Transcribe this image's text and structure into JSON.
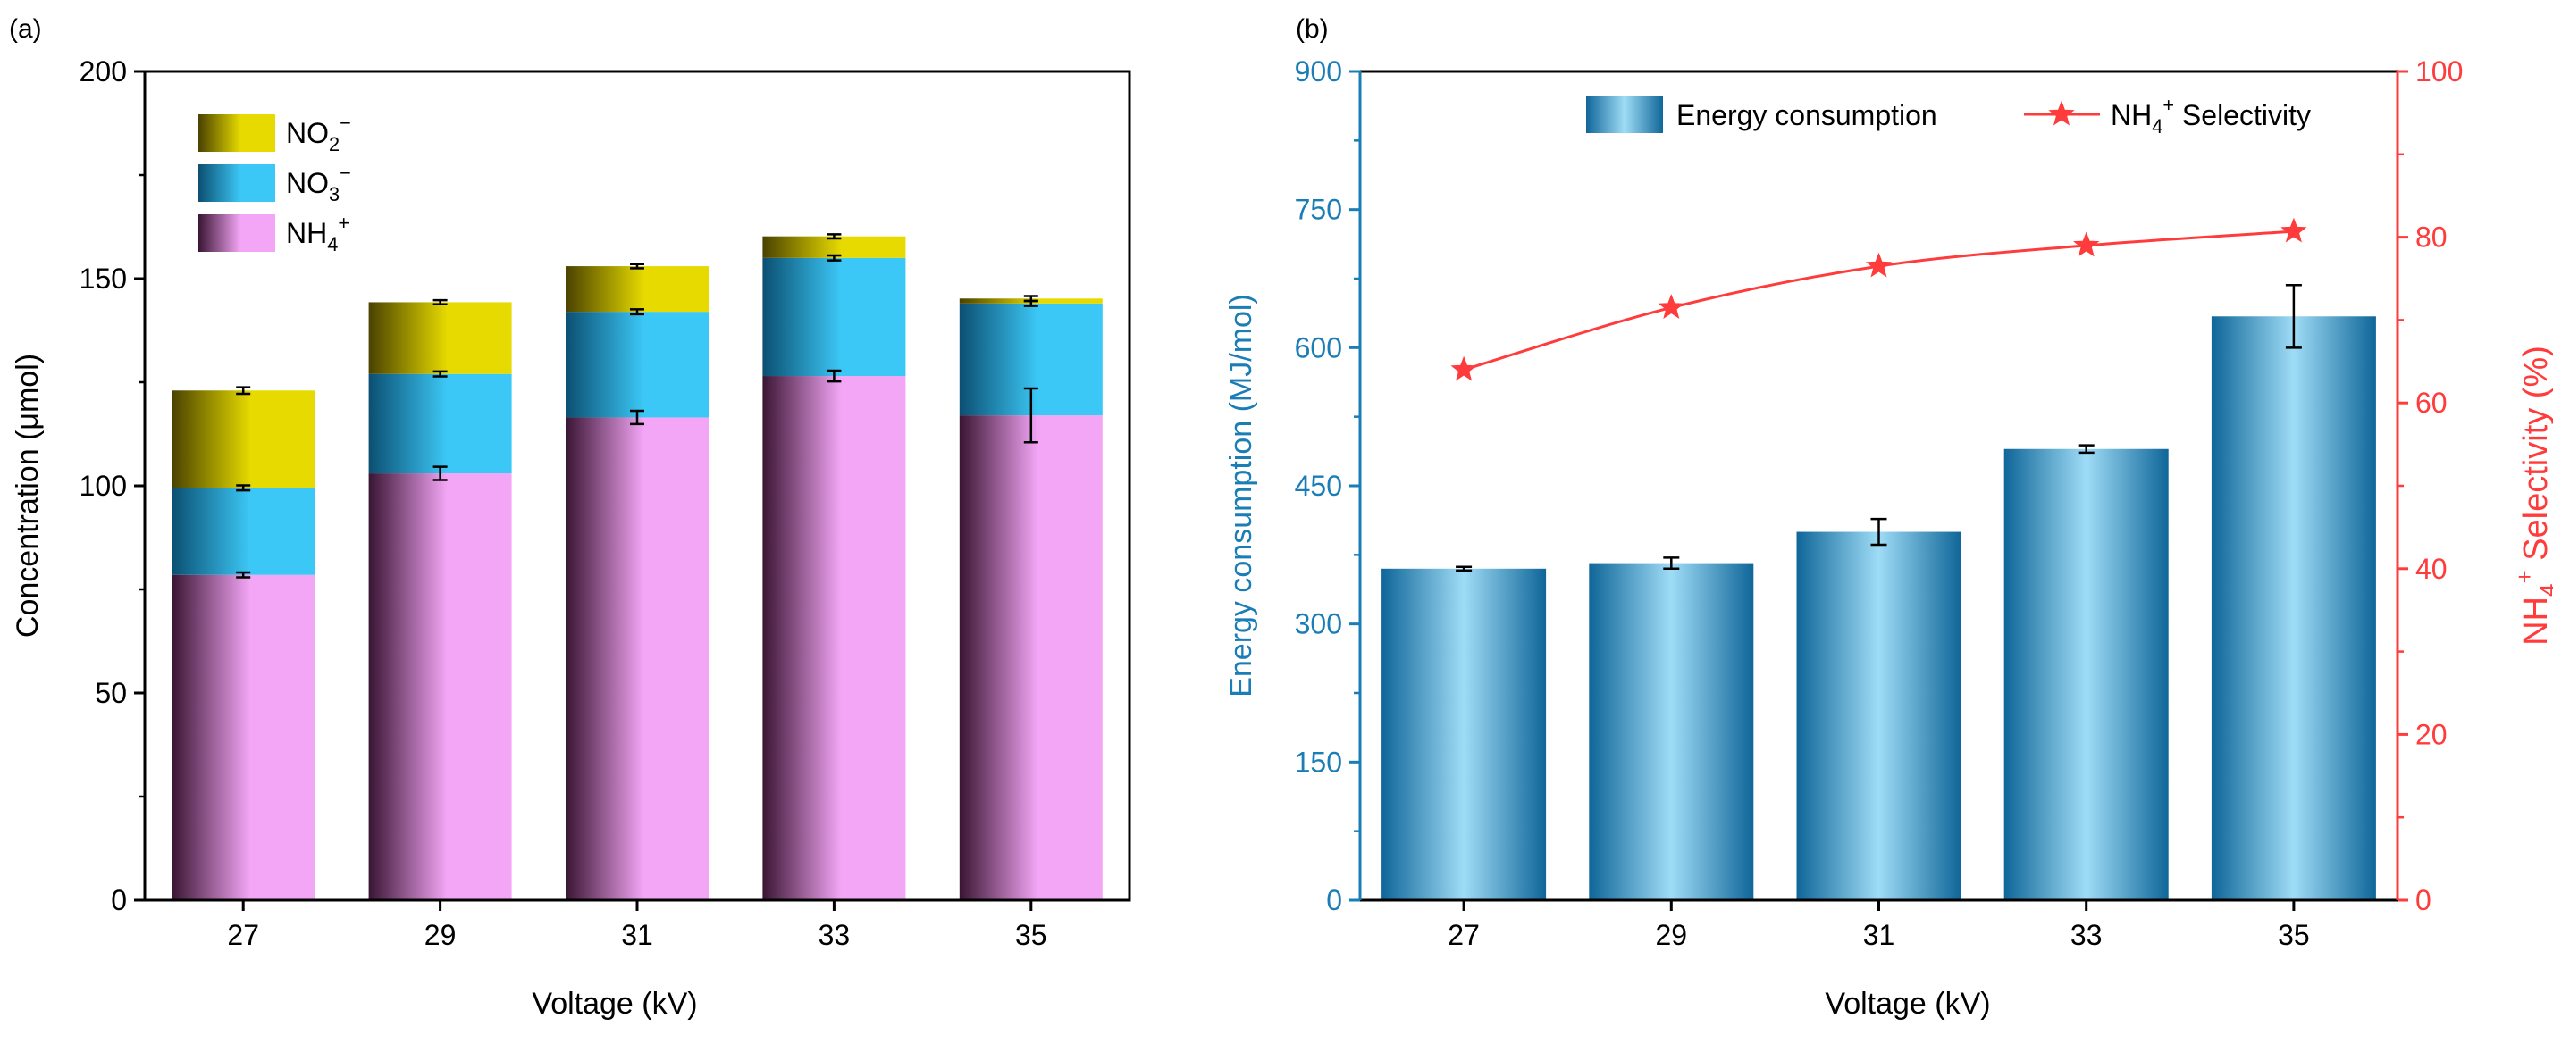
{
  "chart_data": [
    {
      "type": "bar",
      "panel_label": "(a)",
      "stacked": true,
      "categories": [
        "27",
        "29",
        "31",
        "33",
        "35"
      ],
      "xlabel": "Voltage (kV)",
      "ylabel": "Concentration (μmol)",
      "ylim": [
        0,
        200
      ],
      "yticks": [
        0,
        50,
        100,
        150,
        200
      ],
      "legend_position": "top-left",
      "series": [
        {
          "name": "NH4+",
          "label_base": "NH",
          "label_sub": "4",
          "label_sup": "+",
          "color": "#f4a6f6",
          "values": [
            78.5,
            103,
            116.5,
            126.5,
            117
          ],
          "errors": [
            0.6,
            1.6,
            1.6,
            1.3,
            6.5
          ]
        },
        {
          "name": "NO3−",
          "label_base": "NO",
          "label_sub": "3",
          "label_sup": "−",
          "color": "#3cc8f6",
          "values": [
            21,
            24,
            25.5,
            28.5,
            27
          ],
          "errors": [
            0.6,
            0.6,
            0.6,
            0.6,
            0.6
          ]
        },
        {
          "name": "NO2−",
          "label_base": "NO",
          "label_sub": "2",
          "label_sup": "−",
          "color": "#e6da00",
          "values": [
            23.5,
            17.3,
            11,
            5.2,
            1.2
          ],
          "errors": [
            0.8,
            0.5,
            0.5,
            0.5,
            0.6
          ]
        }
      ]
    },
    {
      "type": "bar",
      "panel_label": "(b)",
      "categories": [
        "27",
        "29",
        "31",
        "33",
        "35"
      ],
      "xlabel": "Voltage (kV)",
      "ylabel": "Energy consumption (MJ/mol)",
      "ylim": [
        0,
        900
      ],
      "yticks": [
        0,
        150,
        300,
        450,
        600,
        750,
        900
      ],
      "y2label_base": "NH",
      "y2label_sub": "4",
      "y2label_sup": "+",
      "y2label_rest": " Selectivity (%)",
      "y2lim": [
        0,
        100
      ],
      "y2ticks": [
        0,
        20,
        40,
        60,
        80,
        100
      ],
      "legend_position": "top-right",
      "series": [
        {
          "name": "Energy consumption",
          "type": "bar",
          "axis": "left",
          "color": "#1a7db5",
          "values": [
            360,
            366,
            400,
            490,
            634
          ],
          "errors": [
            2,
            6,
            14,
            4,
            34
          ]
        },
        {
          "name": "NH4+ Selectivity",
          "label_base": "NH",
          "label_sub": "4",
          "label_sup": "+",
          "label_rest": " Selectivity",
          "type": "line",
          "axis": "right",
          "marker": "star",
          "color": "#ff3b3b",
          "values": [
            64,
            71.5,
            76.5,
            79,
            80.7
          ]
        }
      ]
    }
  ]
}
